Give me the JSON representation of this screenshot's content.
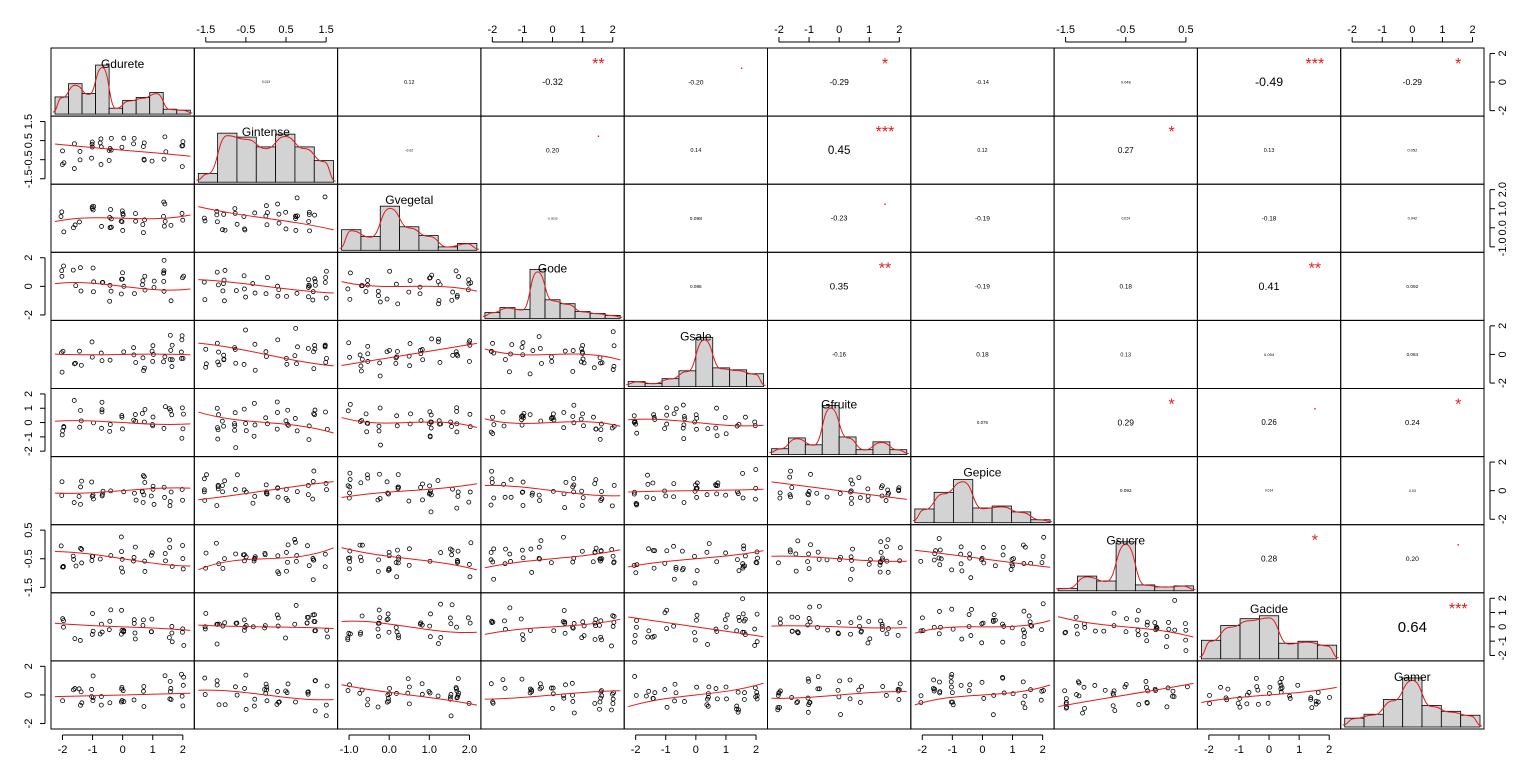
{
  "chart_data": {
    "type": "scatter-matrix",
    "variables": [
      "Gdurete",
      "Gintense",
      "Gvegetal",
      "Gode",
      "Gsale",
      "Gfruite",
      "Gepice",
      "Gsucre",
      "Gacide",
      "Gamer"
    ],
    "correlations": [
      {
        "row": 0,
        "col": 1,
        "label": "0.013",
        "sig": ""
      },
      {
        "row": 0,
        "col": 2,
        "label": "0.12",
        "sig": ""
      },
      {
        "row": 0,
        "col": 3,
        "label": "-0.32",
        "sig": "**"
      },
      {
        "row": 0,
        "col": 4,
        "label": "-0.20",
        "sig": "."
      },
      {
        "row": 0,
        "col": 5,
        "label": "-0.29",
        "sig": "*"
      },
      {
        "row": 0,
        "col": 6,
        "label": "-0.14",
        "sig": ""
      },
      {
        "row": 0,
        "col": 7,
        "label": "0.048",
        "sig": ""
      },
      {
        "row": 0,
        "col": 8,
        "label": "-0.49",
        "sig": "***"
      },
      {
        "row": 0,
        "col": 9,
        "label": "-0.29",
        "sig": "*"
      },
      {
        "row": 1,
        "col": 2,
        "label": "-0.02",
        "sig": ""
      },
      {
        "row": 1,
        "col": 3,
        "label": "0.20",
        "sig": "."
      },
      {
        "row": 1,
        "col": 4,
        "label": "0.14",
        "sig": ""
      },
      {
        "row": 1,
        "col": 5,
        "label": "0.45",
        "sig": "***"
      },
      {
        "row": 1,
        "col": 6,
        "label": "0.12",
        "sig": ""
      },
      {
        "row": 1,
        "col": 7,
        "label": "0.27",
        "sig": "*"
      },
      {
        "row": 1,
        "col": 8,
        "label": "0.13",
        "sig": ""
      },
      {
        "row": 1,
        "col": 9,
        "label": "0.052",
        "sig": ""
      },
      {
        "row": 2,
        "col": 3,
        "label": "-0.0015",
        "sig": ""
      },
      {
        "row": 2,
        "col": 4,
        "label": "0.098",
        "sig": ""
      },
      {
        "row": 2,
        "col": 5,
        "label": "-0.23",
        "sig": "."
      },
      {
        "row": 2,
        "col": 6,
        "label": "-0.19",
        "sig": ""
      },
      {
        "row": 2,
        "col": 7,
        "label": "0.024",
        "sig": ""
      },
      {
        "row": 2,
        "col": 8,
        "label": "-0.18",
        "sig": ""
      },
      {
        "row": 2,
        "col": 9,
        "label": "0.042",
        "sig": ""
      },
      {
        "row": 3,
        "col": 4,
        "label": "0.086",
        "sig": ""
      },
      {
        "row": 3,
        "col": 5,
        "label": "0.35",
        "sig": "**"
      },
      {
        "row": 3,
        "col": 6,
        "label": "-0.19",
        "sig": ""
      },
      {
        "row": 3,
        "col": 7,
        "label": "0.18",
        "sig": ""
      },
      {
        "row": 3,
        "col": 8,
        "label": "0.41",
        "sig": "**"
      },
      {
        "row": 3,
        "col": 9,
        "label": "0.092",
        "sig": ""
      },
      {
        "row": 4,
        "col": 5,
        "label": "-0.16",
        "sig": ""
      },
      {
        "row": 4,
        "col": 6,
        "label": "0.18",
        "sig": ""
      },
      {
        "row": 4,
        "col": 7,
        "label": "0.13",
        "sig": ""
      },
      {
        "row": 4,
        "col": 8,
        "label": "0.054",
        "sig": ""
      },
      {
        "row": 4,
        "col": 9,
        "label": "0.084",
        "sig": ""
      },
      {
        "row": 5,
        "col": 6,
        "label": "0.076",
        "sig": ""
      },
      {
        "row": 5,
        "col": 7,
        "label": "0.29",
        "sig": "*"
      },
      {
        "row": 5,
        "col": 8,
        "label": "0.26",
        "sig": "."
      },
      {
        "row": 5,
        "col": 9,
        "label": "0.24",
        "sig": "*"
      },
      {
        "row": 6,
        "col": 7,
        "label": "0.092",
        "sig": ""
      },
      {
        "row": 6,
        "col": 8,
        "label": "0.014",
        "sig": ""
      },
      {
        "row": 6,
        "col": 9,
        "label": "0.03",
        "sig": ""
      },
      {
        "row": 7,
        "col": 8,
        "label": "0.28",
        "sig": "*"
      },
      {
        "row": 7,
        "col": 9,
        "label": "0.20",
        "sig": "."
      },
      {
        "row": 8,
        "col": 9,
        "label": "0.64",
        "sig": "***"
      }
    ],
    "top_axes": [
      {
        "col": 1,
        "ticks": [
          "-1.5",
          "-0.5",
          "0.5",
          "1.5"
        ]
      },
      {
        "col": 3,
        "ticks": [
          "-2",
          "-1",
          "0",
          "1",
          "2"
        ]
      },
      {
        "col": 5,
        "ticks": [
          "-2",
          "-1",
          "0",
          "1",
          "2"
        ]
      },
      {
        "col": 7,
        "ticks": [
          "-1.5",
          "-0.5",
          "0.5"
        ]
      },
      {
        "col": 9,
        "ticks": [
          "-2",
          "-1",
          "0",
          "1",
          "2"
        ]
      }
    ],
    "bottom_axes": [
      {
        "col": 0,
        "ticks": [
          "-2",
          "-1",
          "0",
          "1",
          "2"
        ]
      },
      {
        "col": 2,
        "ticks": [
          "-1.0",
          "0.0",
          "1.0",
          "2.0"
        ]
      },
      {
        "col": 4,
        "ticks": [
          "-2",
          "-1",
          "0",
          "1",
          "2"
        ]
      },
      {
        "col": 6,
        "ticks": [
          "-2",
          "-1",
          "0",
          "1",
          "2"
        ]
      },
      {
        "col": 8,
        "ticks": [
          "-2",
          "-1",
          "0",
          "1",
          "2"
        ]
      }
    ],
    "left_axes": [
      {
        "row": 1,
        "ticks": [
          "1.5",
          "0.5",
          "-0.5",
          "-1.5"
        ]
      },
      {
        "row": 3,
        "ticks": [
          "2",
          "0",
          "-2"
        ]
      },
      {
        "row": 5,
        "ticks": [
          "2",
          "1",
          "0",
          "-1",
          "-2"
        ]
      },
      {
        "row": 7,
        "ticks": [
          "0.5",
          "-0.5",
          "-1.5"
        ]
      },
      {
        "row": 9,
        "ticks": [
          "2",
          "0",
          "-2"
        ]
      }
    ],
    "right_axes": [
      {
        "row": 0,
        "ticks": [
          "2",
          "0",
          "-2"
        ]
      },
      {
        "row": 2,
        "ticks": [
          "2.0",
          "1.0",
          "0.0",
          "-1.0"
        ]
      },
      {
        "row": 4,
        "ticks": [
          "2",
          "0",
          "-2"
        ]
      },
      {
        "row": 6,
        "ticks": [
          "2",
          "0",
          "-2"
        ]
      },
      {
        "row": 8,
        "ticks": [
          "2",
          "1",
          "0",
          "-1",
          "-2"
        ]
      }
    ],
    "histograms": [
      [
        0.35,
        0.62,
        0.42,
        1.0,
        0.12,
        0.28,
        0.34,
        0.44,
        0.1,
        0.08
      ],
      [
        0.18,
        1.0,
        0.92,
        0.72,
        0.98,
        0.72,
        0.44
      ],
      [
        0.42,
        0.28,
        0.9,
        0.48,
        0.3,
        0.07,
        0.14
      ],
      [
        0.12,
        0.22,
        0.18,
        1.0,
        0.38,
        0.3,
        0.14,
        0.1,
        0.06
      ],
      [
        0.1,
        0.06,
        0.16,
        0.32,
        1.0,
        0.38,
        0.34,
        0.26
      ],
      [
        0.12,
        0.34,
        0.2,
        1.0,
        0.36,
        0.1,
        0.26,
        0.1
      ],
      [
        0.28,
        0.62,
        0.88,
        0.3,
        0.34,
        0.22,
        0.06
      ],
      [
        0.05,
        0.3,
        0.2,
        1.0,
        0.12,
        0.08,
        0.1
      ],
      [
        0.38,
        0.68,
        0.82,
        0.88,
        0.32,
        0.36,
        0.28
      ],
      [
        0.18,
        0.26,
        0.56,
        1.0,
        0.44,
        0.32,
        0.24
      ]
    ],
    "point_rows": 3,
    "point_x_levels": [
      -2,
      -1.6,
      -1.4,
      -1,
      -0.7,
      -0.4,
      0,
      0.4,
      0.7,
      1,
      1.4,
      1.6,
      2
    ],
    "scatter_seed": 42
  }
}
